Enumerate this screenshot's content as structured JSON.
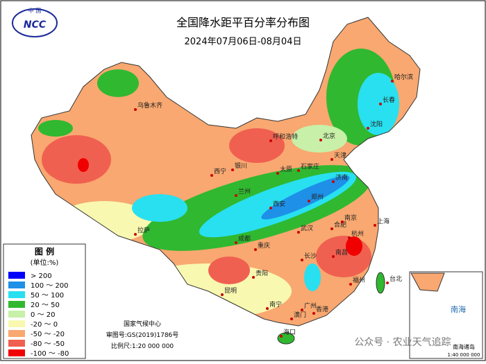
{
  "header": {
    "logo_top": "中 国",
    "logo": "NCC",
    "title": "全国降水距平百分率分布图",
    "subtitle": "2024年07月06日-08月04日"
  },
  "legend": {
    "title": "图 例",
    "unit": "(单位:%)",
    "items": [
      {
        "label": "> 200",
        "color": "#0000ff"
      },
      {
        "label": "100 ～ 200",
        "color": "#1e90e8"
      },
      {
        "label": "50 ～ 100",
        "color": "#28e0f0"
      },
      {
        "label": "20 ～ 50",
        "color": "#30b830"
      },
      {
        "label": "0 ～ 20",
        "color": "#c8f0a8"
      },
      {
        "label": "-20 ～ 0",
        "color": "#f8f8b0"
      },
      {
        "label": "-50 ～ -20",
        "color": "#f8a870"
      },
      {
        "label": "-80 ～ -50",
        "color": "#f06050"
      },
      {
        "label": "-100 ～ -80",
        "color": "#f00000"
      }
    ]
  },
  "footer": {
    "org": "国家气候中心",
    "approval": "审图号:GS(2019)1786号",
    "scale": "比例尺:1:20 000 000"
  },
  "inset": {
    "sea": "南海",
    "islands": "南海诸岛",
    "scale": "1:40 000 000"
  },
  "watermark": "公众号 · 农业天气追踪",
  "cities": [
    "哈尔滨",
    "长春",
    "沈阳",
    "乌鲁木齐",
    "呼和浩特",
    "北京",
    "天津",
    "石家庄",
    "太原",
    "济南",
    "银川",
    "西宁",
    "兰州",
    "西安",
    "郑州",
    "合肥",
    "南京",
    "上海",
    "杭州",
    "武汉",
    "成都",
    "重庆",
    "拉萨",
    "贵阳",
    "长沙",
    "南昌",
    "福州",
    "台北",
    "昆明",
    "南宁",
    "广州",
    "香港",
    "澳门",
    "海口"
  ]
}
